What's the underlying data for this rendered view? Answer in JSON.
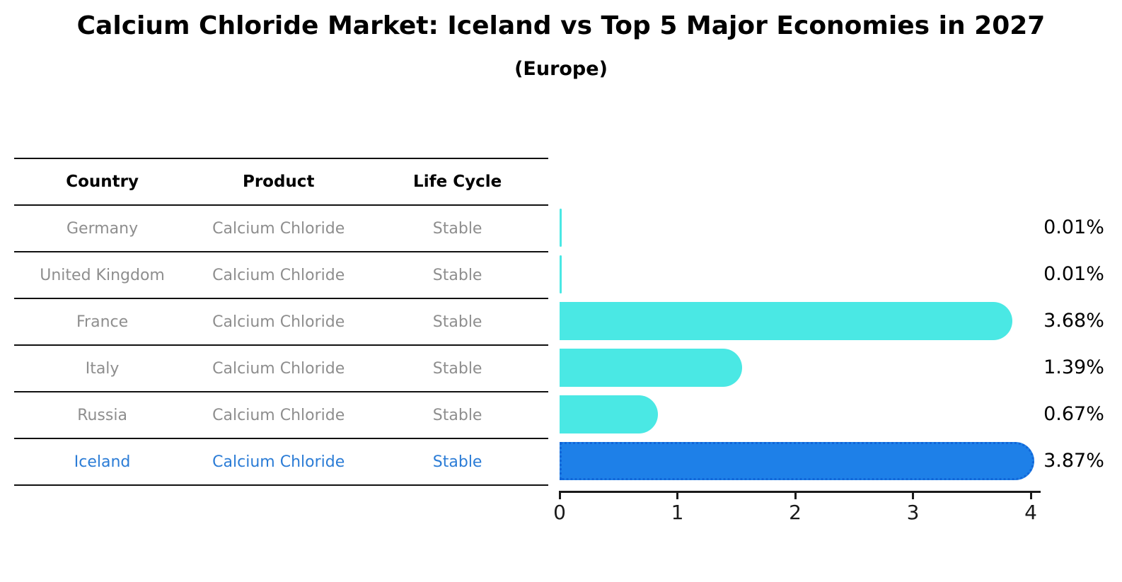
{
  "title": "Calcium Chloride Market: Iceland vs Top 5 Major Economies in 2027",
  "subtitle": "(Europe)",
  "table": {
    "headers": [
      "Country",
      "Product",
      "Life Cycle"
    ],
    "rows": [
      {
        "country": "Germany",
        "product": "Calcium Chloride",
        "life_cycle": "Stable",
        "highlighted": false
      },
      {
        "country": "United Kingdom",
        "product": "Calcium Chloride",
        "life_cycle": "Stable",
        "highlighted": false
      },
      {
        "country": "France",
        "product": "Calcium Chloride",
        "life_cycle": "Stable",
        "highlighted": false
      },
      {
        "country": "Italy",
        "product": "Calcium Chloride",
        "life_cycle": "Stable",
        "highlighted": false
      },
      {
        "country": "Russia",
        "product": "Calcium Chloride",
        "life_cycle": "Stable",
        "highlighted": false
      },
      {
        "country": "Iceland",
        "product": "Calcium Chloride",
        "life_cycle": "Stable",
        "highlighted": true
      }
    ]
  },
  "chart_data": {
    "type": "bar",
    "orientation": "horizontal",
    "title": "Calcium Chloride Market: Iceland vs Top 5 Major Economies in 2027",
    "subtitle": "(Europe)",
    "categories": [
      "Germany",
      "United Kingdom",
      "France",
      "Italy",
      "Russia",
      "Iceland"
    ],
    "values": [
      0.01,
      0.01,
      3.68,
      1.39,
      0.67,
      3.87
    ],
    "value_labels": [
      "0.01%",
      "0.01%",
      "3.68%",
      "1.39%",
      "0.67%",
      "3.87%"
    ],
    "unit": "%",
    "xlim": [
      0,
      4
    ],
    "xticks": [
      "0",
      "1",
      "2",
      "3",
      "4"
    ],
    "grid": "off",
    "legend": "none",
    "highlight_index": 5,
    "colors": {
      "bar": "#4ae8e4",
      "highlight_bar": "#1e80e8",
      "highlight_border": "#1166d8",
      "highlight_text": "#2b7cd6",
      "row_text": "#8e8e8e",
      "axis": "#1a1a1a"
    }
  }
}
